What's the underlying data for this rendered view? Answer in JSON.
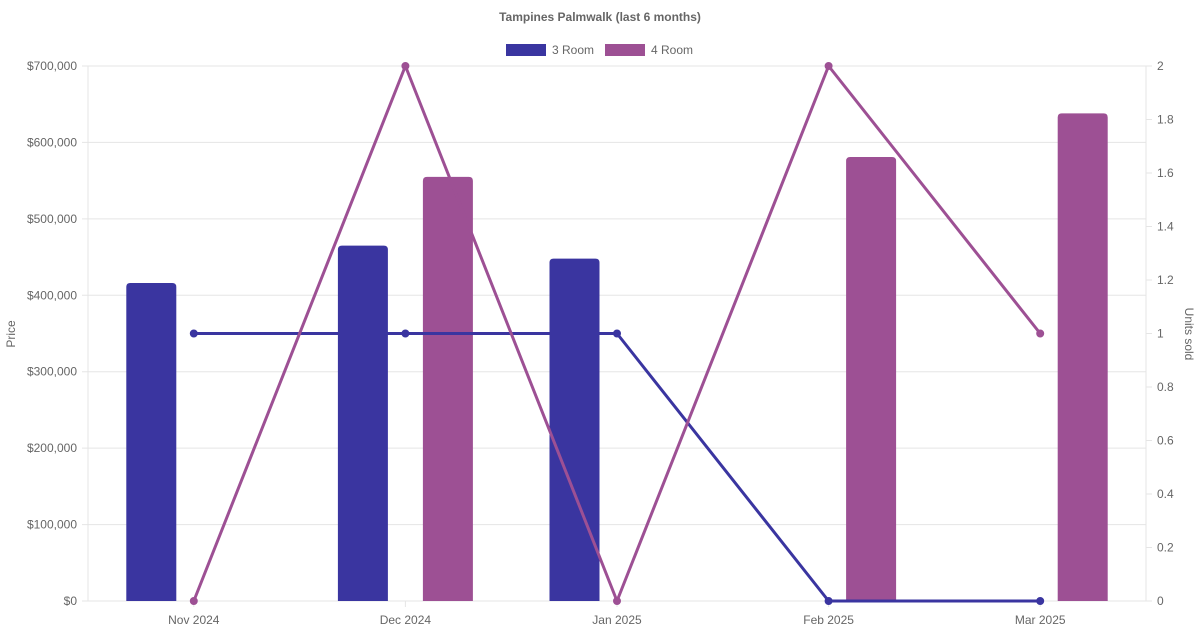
{
  "chart_data": {
    "type": "bar",
    "title": "Tampines Palmwalk (last 6 months)",
    "categories": [
      "Nov 2024",
      "Dec 2024",
      "Jan 2025",
      "Feb 2025",
      "Mar 2025"
    ],
    "legend": {
      "position": "top",
      "items": [
        {
          "name": "3 Room",
          "color": "#3a35a0"
        },
        {
          "name": "4 Room",
          "color": "#9d5094"
        }
      ]
    },
    "y_left": {
      "label": "Price",
      "range": [
        0,
        700000
      ],
      "ticks": [
        {
          "value": 0,
          "label": "$0"
        },
        {
          "value": 100000,
          "label": "$100,000"
        },
        {
          "value": 200000,
          "label": "$200,000"
        },
        {
          "value": 300000,
          "label": "$300,000"
        },
        {
          "value": 400000,
          "label": "$400,000"
        },
        {
          "value": 500000,
          "label": "$500,000"
        },
        {
          "value": 600000,
          "label": "$600,000"
        },
        {
          "value": 700000,
          "label": "$700,000"
        }
      ]
    },
    "y_right": {
      "label": "Units sold",
      "range": [
        0,
        2
      ],
      "ticks": [
        {
          "value": 0,
          "label": "0"
        },
        {
          "value": 0.2,
          "label": "0.2"
        },
        {
          "value": 0.4,
          "label": "0.4"
        },
        {
          "value": 0.6,
          "label": "0.6"
        },
        {
          "value": 0.8,
          "label": "0.8"
        },
        {
          "value": 1,
          "label": "1"
        },
        {
          "value": 1.2,
          "label": "1.2"
        },
        {
          "value": 1.4,
          "label": "1.4"
        },
        {
          "value": 1.6,
          "label": "1.6"
        },
        {
          "value": 1.8,
          "label": "1.8"
        },
        {
          "value": 2,
          "label": "2"
        }
      ]
    },
    "grid": true,
    "series": [
      {
        "name": "3 Room",
        "kind": "bar",
        "axis": "left",
        "color": "#3a35a0",
        "values": [
          416000,
          465000,
          448000,
          null,
          null
        ]
      },
      {
        "name": "4 Room",
        "kind": "bar",
        "axis": "left",
        "color": "#9d5094",
        "values": [
          null,
          555000,
          null,
          581000,
          638000
        ]
      },
      {
        "kind": "line",
        "axis": "right",
        "color": "#3a35a0",
        "values": [
          1,
          1,
          1,
          0,
          0
        ]
      },
      {
        "kind": "line",
        "axis": "right",
        "color": "#9d5094",
        "values": [
          0,
          2,
          0,
          2,
          1
        ]
      }
    ]
  }
}
